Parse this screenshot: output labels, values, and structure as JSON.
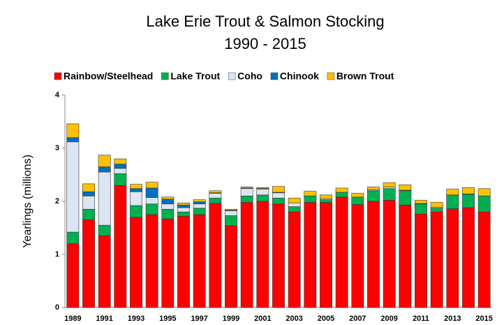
{
  "chart_data": {
    "type": "bar",
    "stacked": true,
    "title": "Lake Erie Trout & Salmon Stocking",
    "subtitle": "1990 - 2015",
    "y_label": "Yearlings (millions)",
    "categories": [
      "1989",
      null,
      "1991",
      null,
      "1993",
      null,
      "1995",
      null,
      "1997",
      null,
      "1999",
      null,
      "2001",
      null,
      "2003",
      null,
      "2005",
      null,
      "2007",
      null,
      "2009",
      null,
      "2011",
      null,
      "2013",
      null,
      "2015"
    ],
    "series": [
      {
        "name": "Rainbow/Steelhead",
        "color": "#ff0000",
        "values": [
          1.2,
          1.65,
          1.35,
          2.3,
          1.7,
          1.75,
          1.67,
          1.72,
          1.75,
          1.96,
          1.54,
          1.98,
          2.0,
          1.95,
          1.8,
          1.98,
          1.98,
          2.08,
          1.94,
          2.0,
          2.02,
          1.93,
          1.76,
          1.8,
          1.86,
          1.88,
          1.8
        ]
      },
      {
        "name": "Lake Trout",
        "color": "#00b050",
        "values": [
          0.22,
          0.2,
          0.2,
          0.22,
          0.22,
          0.2,
          0.18,
          0.08,
          0.12,
          0.1,
          0.19,
          0.12,
          0.12,
          0.11,
          0.1,
          0.12,
          0.05,
          0.09,
          0.14,
          0.2,
          0.22,
          0.27,
          0.19,
          0.07,
          0.26,
          0.25,
          0.3
        ]
      },
      {
        "name": "Coho",
        "color": "#dce6f2",
        "values": [
          1.7,
          0.25,
          1.0,
          0.1,
          0.26,
          0.12,
          0.1,
          0.08,
          0.08,
          0.09,
          0.09,
          0.14,
          0.11,
          0.1,
          0.07,
          0,
          0.02,
          0,
          0,
          0.02,
          0.03,
          0.01,
          0.01,
          0.02,
          0,
          0.01,
          0
        ]
      },
      {
        "name": "Chinook",
        "color": "#0070c0",
        "values": [
          0.08,
          0.08,
          0.1,
          0.08,
          0.06,
          0.18,
          0.09,
          0.05,
          0.04,
          0.01,
          0.01,
          0.01,
          0.01,
          0.01,
          0,
          0,
          0,
          0,
          0,
          0,
          0,
          0,
          0,
          0,
          0,
          0,
          0
        ]
      },
      {
        "name": "Brown Trout",
        "color": "#ffc000",
        "values": [
          0.26,
          0.15,
          0.22,
          0.1,
          0.08,
          0.11,
          0.04,
          0.04,
          0.04,
          0.04,
          0.02,
          0.02,
          0.02,
          0.11,
          0.09,
          0.09,
          0.07,
          0.08,
          0.07,
          0.05,
          0.08,
          0.1,
          0.06,
          0.09,
          0.11,
          0.12,
          0.14
        ]
      }
    ],
    "ylim": [
      0,
      4
    ],
    "yticks": [
      0,
      1,
      2,
      3,
      4
    ],
    "grid": false,
    "legend": "top"
  }
}
